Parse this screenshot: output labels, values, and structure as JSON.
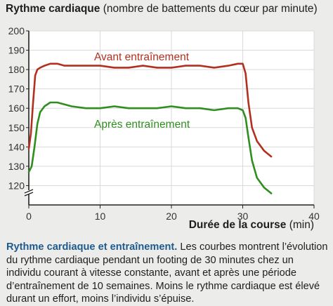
{
  "title": {
    "bold": "Rythme cardiaque",
    "rest": " (nombre de battements du cœur par minute)"
  },
  "caption": {
    "heading": "Rythme cardiaque et entraînement.",
    "text": " Les courbes montrent l’évolution du rythme cardiaque pendant un footing de 30 minutes chez un individu courant à vitesse constante, avant et après une période d’entraînement de 10 semaines. Moins le rythme cardiaque est élevé durant un effort, moins l’individu s’épuise."
  },
  "colors": {
    "avant": "#b2301f",
    "apres": "#2e8f1f",
    "grid": "#d9d9d9",
    "axis": "#222222",
    "panel": "#ffffff",
    "page": "#ecedeb",
    "caption_accent": "#1f5a8c"
  },
  "chart_data": {
    "type": "line",
    "xlabel": "Durée de la course",
    "xlabel_unit": " (min)",
    "xlim": [
      0,
      40
    ],
    "ylim": [
      110,
      200
    ],
    "y_axis_break": true,
    "x_ticks": [
      "0",
      "10",
      "20",
      "30",
      "40"
    ],
    "y_ticks": [
      "120",
      "130",
      "140",
      "150",
      "160",
      "170",
      "180",
      "190",
      "200"
    ],
    "grid": true,
    "series": [
      {
        "name": "Avant entraînement",
        "color_key": "avant",
        "x": [
          0,
          0.3,
          0.6,
          0.9,
          1.2,
          1.6,
          2.2,
          3,
          4,
          5,
          6,
          8,
          10,
          12,
          14,
          16,
          18,
          20,
          22,
          24,
          26,
          28,
          29.3,
          30,
          30.4,
          30.8,
          31.3,
          32,
          33,
          34
        ],
        "y": [
          139,
          147,
          163,
          177,
          180,
          181,
          182,
          183,
          183,
          182,
          182,
          182,
          182,
          181,
          181,
          182,
          181,
          181,
          182,
          182,
          181,
          182,
          183,
          183,
          178,
          163,
          150,
          143,
          138,
          135
        ]
      },
      {
        "name": "Après entraînement",
        "color_key": "apres",
        "x": [
          0,
          0.4,
          0.8,
          1.2,
          1.6,
          2.2,
          3,
          4,
          5,
          6,
          8,
          10,
          12,
          14,
          16,
          18,
          20,
          22,
          24,
          26,
          28,
          29.3,
          30,
          30.4,
          30.8,
          31.3,
          32,
          33,
          34
        ],
        "y": [
          127,
          130,
          140,
          152,
          158,
          161,
          163,
          163,
          162,
          161,
          160,
          160,
          161,
          160,
          160,
          160,
          161,
          160,
          160,
          159,
          160,
          160,
          159,
          155,
          145,
          133,
          124,
          119,
          116
        ]
      }
    ]
  }
}
